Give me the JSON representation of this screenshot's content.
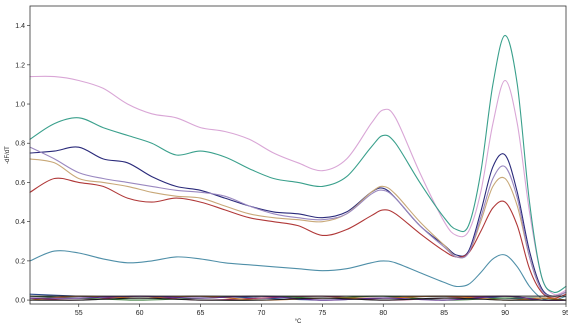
{
  "chart_data": {
    "type": "line",
    "title": "",
    "xlabel": "°C",
    "ylabel": "-dF/dT",
    "xlim": [
      51,
      95
    ],
    "ylim": [
      -0.02,
      1.5
    ],
    "grid": false,
    "legend": "none",
    "x_ticks": [
      55,
      60,
      65,
      70,
      75,
      80,
      85,
      90,
      95
    ],
    "y_ticks": [
      0.0,
      0.2,
      0.4,
      0.6,
      0.8,
      1.0,
      1.2,
      1.4
    ],
    "x_tick_labels": [
      "55",
      "60",
      "65",
      "70",
      "75",
      "80",
      "85",
      "90",
      "95"
    ],
    "y_tick_labels": [
      "0.0",
      "0.2",
      "0.4",
      "0.6",
      "0.8",
      "1.0",
      "1.2",
      "1.4"
    ],
    "threshold": {
      "y": 0.02,
      "color": "#222222"
    },
    "series": [
      {
        "color": "#d9a6d6",
        "x": [
          51,
          53,
          55,
          57,
          59,
          61,
          63,
          65,
          67,
          69,
          71,
          73,
          75,
          77,
          79,
          80,
          81,
          83,
          85,
          86,
          87,
          88,
          89,
          90,
          91,
          92,
          93,
          94,
          95
        ],
        "y": [
          1.14,
          1.14,
          1.12,
          1.08,
          1.0,
          0.95,
          0.93,
          0.88,
          0.86,
          0.82,
          0.75,
          0.7,
          0.66,
          0.72,
          0.9,
          0.97,
          0.93,
          0.65,
          0.4,
          0.33,
          0.35,
          0.55,
          0.9,
          1.12,
          0.9,
          0.45,
          0.12,
          0.03,
          0.05
        ]
      },
      {
        "color": "#3aa08c",
        "x": [
          51,
          53,
          55,
          57,
          59,
          61,
          63,
          65,
          67,
          69,
          71,
          73,
          75,
          77,
          79,
          80,
          81,
          83,
          85,
          86,
          87,
          88,
          89,
          90,
          91,
          92,
          93,
          94,
          95
        ],
        "y": [
          0.82,
          0.9,
          0.93,
          0.88,
          0.84,
          0.8,
          0.74,
          0.76,
          0.73,
          0.67,
          0.62,
          0.6,
          0.58,
          0.63,
          0.78,
          0.84,
          0.8,
          0.6,
          0.42,
          0.36,
          0.38,
          0.65,
          1.1,
          1.35,
          1.1,
          0.5,
          0.12,
          0.04,
          0.07
        ]
      },
      {
        "color": "#2a2a7a",
        "x": [
          51,
          53,
          55,
          57,
          59,
          61,
          63,
          65,
          67,
          69,
          71,
          73,
          75,
          77,
          79,
          80,
          81,
          83,
          85,
          86,
          87,
          88,
          89,
          90,
          91,
          92,
          93,
          94,
          95
        ],
        "y": [
          0.75,
          0.76,
          0.78,
          0.72,
          0.7,
          0.63,
          0.58,
          0.56,
          0.52,
          0.48,
          0.45,
          0.44,
          0.42,
          0.45,
          0.55,
          0.57,
          0.52,
          0.38,
          0.28,
          0.23,
          0.25,
          0.45,
          0.68,
          0.74,
          0.55,
          0.25,
          0.06,
          0.02,
          0.04
        ]
      },
      {
        "color": "#c8a878",
        "x": [
          51,
          53,
          55,
          57,
          59,
          61,
          63,
          65,
          67,
          69,
          71,
          73,
          75,
          77,
          79,
          80,
          81,
          83,
          85,
          86,
          87,
          88,
          89,
          90,
          91,
          92,
          93,
          94,
          95
        ],
        "y": [
          0.72,
          0.7,
          0.62,
          0.6,
          0.58,
          0.55,
          0.53,
          0.52,
          0.48,
          0.44,
          0.42,
          0.41,
          0.4,
          0.44,
          0.55,
          0.58,
          0.54,
          0.4,
          0.28,
          0.22,
          0.24,
          0.4,
          0.58,
          0.62,
          0.48,
          0.22,
          0.05,
          0.02,
          0.04
        ]
      },
      {
        "color": "#b03838",
        "x": [
          51,
          53,
          55,
          57,
          59,
          61,
          63,
          65,
          67,
          69,
          71,
          73,
          75,
          77,
          79,
          80,
          81,
          83,
          85,
          86,
          87,
          88,
          89,
          90,
          91,
          92,
          93,
          94,
          95
        ],
        "y": [
          0.55,
          0.62,
          0.6,
          0.58,
          0.52,
          0.5,
          0.52,
          0.5,
          0.46,
          0.42,
          0.4,
          0.38,
          0.33,
          0.36,
          0.43,
          0.46,
          0.44,
          0.34,
          0.25,
          0.22,
          0.24,
          0.35,
          0.47,
          0.5,
          0.38,
          0.16,
          0.04,
          0.01,
          0.03
        ]
      },
      {
        "color": "#9a88c0",
        "x": [
          51,
          53,
          55,
          57,
          59,
          61,
          63,
          65,
          67,
          69,
          71,
          73,
          75,
          77,
          79,
          80,
          81,
          83,
          85,
          86,
          87,
          88,
          89,
          90,
          91,
          92,
          93,
          94,
          95
        ],
        "y": [
          0.78,
          0.72,
          0.65,
          0.62,
          0.6,
          0.58,
          0.56,
          0.55,
          0.53,
          0.48,
          0.44,
          0.42,
          0.41,
          0.44,
          0.54,
          0.56,
          0.52,
          0.38,
          0.27,
          0.22,
          0.24,
          0.42,
          0.62,
          0.68,
          0.52,
          0.22,
          0.05,
          0.02,
          0.04
        ]
      },
      {
        "color": "#4f8fa8",
        "x": [
          51,
          53,
          55,
          57,
          59,
          61,
          63,
          65,
          67,
          69,
          71,
          73,
          75,
          77,
          79,
          80,
          81,
          83,
          85,
          86,
          87,
          88,
          89,
          90,
          91,
          92,
          93,
          94,
          95
        ],
        "y": [
          0.2,
          0.25,
          0.24,
          0.21,
          0.19,
          0.2,
          0.22,
          0.21,
          0.19,
          0.18,
          0.17,
          0.16,
          0.15,
          0.16,
          0.19,
          0.2,
          0.19,
          0.14,
          0.09,
          0.07,
          0.08,
          0.14,
          0.21,
          0.23,
          0.17,
          0.07,
          0.01,
          0.0,
          0.02
        ]
      },
      {
        "color": "#2c4a8c",
        "x": [
          51,
          55,
          60,
          65,
          70,
          75,
          80,
          85,
          90,
          93,
          95
        ],
        "y": [
          0.03,
          0.02,
          0.01,
          0.02,
          0.01,
          0.0,
          0.01,
          0.02,
          0.01,
          0.0,
          0.0
        ]
      },
      {
        "color": "#a03060",
        "x": [
          51,
          55,
          60,
          65,
          70,
          75,
          80,
          85,
          90,
          93,
          95
        ],
        "y": [
          0.01,
          0.0,
          0.02,
          0.0,
          0.01,
          0.02,
          0.0,
          0.01,
          0.02,
          0.0,
          0.0
        ]
      },
      {
        "color": "#3a7a3a",
        "x": [
          51,
          55,
          60,
          65,
          70,
          75,
          80,
          85,
          90,
          93,
          95
        ],
        "y": [
          0.02,
          0.01,
          0.0,
          0.01,
          0.02,
          0.01,
          0.02,
          0.0,
          0.01,
          0.01,
          0.0
        ]
      },
      {
        "color": "#c06a20",
        "x": [
          51,
          55,
          60,
          65,
          70,
          75,
          80,
          85,
          90,
          93,
          95
        ],
        "y": [
          0.0,
          0.02,
          0.01,
          0.02,
          0.0,
          0.01,
          0.01,
          0.02,
          0.0,
          0.01,
          0.0
        ]
      },
      {
        "color": "#5a2a8a",
        "x": [
          51,
          55,
          60,
          65,
          70,
          75,
          80,
          85,
          90,
          93,
          95
        ],
        "y": [
          0.01,
          0.01,
          0.02,
          0.01,
          0.02,
          0.0,
          0.01,
          0.0,
          0.02,
          0.0,
          0.0
        ]
      },
      {
        "color": "#1a1a1a",
        "x": [
          51,
          55,
          60,
          65,
          70,
          75,
          80,
          85,
          90,
          93,
          95
        ],
        "y": [
          0.0,
          0.0,
          0.01,
          0.0,
          0.0,
          0.01,
          0.0,
          0.01,
          0.0,
          0.0,
          0.0
        ]
      }
    ]
  }
}
